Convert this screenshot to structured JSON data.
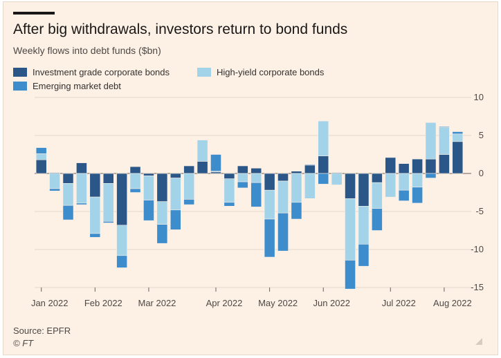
{
  "title": "After big withdrawals, investors return to bond funds",
  "subtitle": "Weekly flows into debt funds ($bn)",
  "source": "Source: EPFR",
  "credit": "© FT",
  "legend": [
    {
      "name": "Investment grade corporate bonds",
      "color": "#2a5788"
    },
    {
      "name": "High-yield corporate bonds",
      "color": "#a3d3e8"
    },
    {
      "name": "Emerging market debt",
      "color": "#3d8dcd"
    }
  ],
  "chart_data": {
    "type": "bar",
    "stacked": true,
    "x_tick_labels": [
      "Jan 2022",
      "Feb 2022",
      "Mar 2022",
      "Apr 2022",
      "May 2022",
      "Jun 2022",
      "Jul 2022",
      "Aug 2022"
    ],
    "x_tick_week_index": [
      0,
      4,
      8,
      13,
      17,
      21,
      26,
      30
    ],
    "ylim": [
      -15,
      10
    ],
    "yticks": [
      10,
      5,
      0,
      -5,
      -10,
      -15
    ],
    "grid": true,
    "legend_position": "top-left",
    "series": [
      {
        "name": "Investment grade corporate bonds",
        "values": [
          1.8,
          0.1,
          -1.3,
          1.4,
          -3.1,
          -1.3,
          -6.8,
          0.9,
          -0.3,
          -3.7,
          -0.6,
          1.0,
          1.6,
          0.2,
          -0.7,
          1.0,
          0.7,
          -2.2,
          -1.0,
          0.3,
          1.1,
          2.3,
          0.1,
          -3.3,
          -4.3,
          -1.2,
          2.1,
          1.3,
          1.9,
          1.9,
          2.5,
          4.2
        ]
      },
      {
        "name": "High-yield corporate bonds",
        "values": [
          0.8,
          -2.0,
          -2.9,
          -3.9,
          -4.8,
          -5.0,
          -4.0,
          -2.0,
          -3.2,
          -3.0,
          -4.2,
          -3.4,
          2.8,
          0.1,
          -3.1,
          -1.1,
          -1.2,
          -3.8,
          -4.2,
          -3.8,
          -3.3,
          4.6,
          -1.5,
          -8.1,
          -5.0,
          -3.4,
          -3.1,
          -2.2,
          -1.8,
          4.8,
          3.6,
          1.0
        ]
      },
      {
        "name": "Emerging market debt",
        "values": [
          0.8,
          -0.3,
          -1.9,
          -0.2,
          -0.5,
          -0.2,
          -1.6,
          -0.5,
          -2.7,
          -2.5,
          -2.6,
          -0.7,
          0.0,
          2.2,
          -0.5,
          -0.8,
          -3.2,
          -5.0,
          -5.0,
          -2.2,
          0.1,
          -1.4,
          0.0,
          -3.8,
          -2.9,
          -2.9,
          0.0,
          -1.4,
          -2.1,
          -0.6,
          0.1,
          0.3
        ]
      }
    ]
  }
}
